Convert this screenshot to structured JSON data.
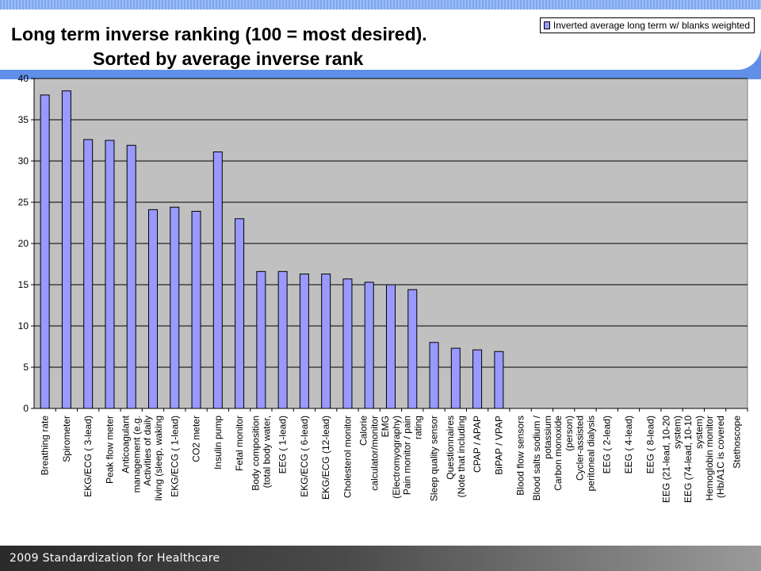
{
  "slide": {
    "title_line1": "Long term inverse ranking (100 = most desired).",
    "title_line2": "Sorted by average inverse rank",
    "footer": "2009 Standardization for Healthcare"
  },
  "colors": {
    "bar_fill": "#9999ff",
    "plot_background": "#c0c0c0",
    "header_band": "#5f8fe8"
  },
  "chart_data": {
    "type": "bar",
    "legend_position": "top-right",
    "grid": true,
    "ylim": [
      0,
      40
    ],
    "yticks": [
      0,
      5,
      10,
      15,
      20,
      25,
      30,
      35,
      40
    ],
    "series": [
      {
        "name": "Inverted average long term w/ blanks weighted",
        "values": [
          38.0,
          38.5,
          32.6,
          32.5,
          31.9,
          24.1,
          24.4,
          23.9,
          31.1,
          23.0,
          16.6,
          16.6,
          16.3,
          16.3,
          15.7,
          15.3,
          15.0,
          14.4,
          8.0,
          7.3,
          7.1,
          6.9,
          0,
          0,
          0,
          0,
          0,
          0,
          0,
          0,
          0,
          0,
          0
        ]
      }
    ],
    "categories": [
      [
        "Breathing rate"
      ],
      [
        "Spirometer"
      ],
      [
        "EKG/ECG ( 3-lead)"
      ],
      [
        "Peak flow meter"
      ],
      [
        "Anticoagulant",
        "management (e.g."
      ],
      [
        "Activities of daily",
        "living (sleep, waking"
      ],
      [
        "EKG/ECG ( 1-lead)"
      ],
      [
        "CO2 meter"
      ],
      [
        "Insulin pump"
      ],
      [
        "Fetal monitor"
      ],
      [
        "Body composition",
        "(total body water,"
      ],
      [
        "EEG ( 1-lead)"
      ],
      [
        "EKG/ECG ( 6-lead)"
      ],
      [
        "EKG/ECG (12-lead)"
      ],
      [
        "Cholesterol monitor"
      ],
      [
        "Calorie",
        "calculator/monitor"
      ],
      [
        "EMG",
        "(Electromyography)"
      ],
      [
        "Pain monitor / pain",
        "rating"
      ],
      [
        "Sleep quality sensor"
      ],
      [
        "Questionnaires",
        "(Note that including"
      ],
      [
        "CPAP / APAP"
      ],
      [
        "BiPAP / VPAP"
      ],
      [
        "Blood flow sensors"
      ],
      [
        "Blood salts sodium /",
        "potassium"
      ],
      [
        "Carbon monoxide",
        "(person)"
      ],
      [
        "Cycler-assisted",
        "peritoneal dialysis"
      ],
      [
        "EEG ( 2-lead)"
      ],
      [
        "EEG ( 4-lead)"
      ],
      [
        "EEG ( 8-lead)"
      ],
      [
        "EEG (21-lead, 10-20",
        "system)"
      ],
      [
        "EEG (74-lead, 10-10",
        "system)"
      ],
      [
        "Hemoglobin monitor",
        "(Hb/A1C is covered"
      ],
      [
        "Stethoscope"
      ]
    ]
  }
}
